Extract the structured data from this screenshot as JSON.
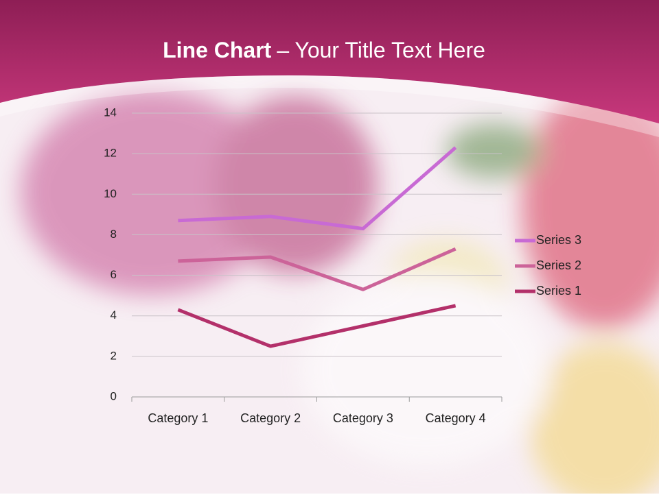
{
  "chart_data": {
    "type": "line",
    "stacked": true,
    "title": {
      "bold": "Line Chart",
      "rest": "– Your Title Text Here"
    },
    "categories": [
      "Category 1",
      "Category 2",
      "Category 3",
      "Category 4"
    ],
    "series": [
      {
        "name": "Series 1",
        "color": "#b3306a",
        "values": [
          4.3,
          2.5,
          3.5,
          4.5
        ]
      },
      {
        "name": "Series 2",
        "color": "#cc6399",
        "values": [
          2.4,
          4.4,
          1.8,
          2.8
        ]
      },
      {
        "name": "Series 3",
        "color": "#c86ad4",
        "values": [
          2,
          2,
          3,
          5
        ]
      }
    ],
    "ylim": [
      0,
      14
    ],
    "yticks": [
      0,
      2,
      4,
      6,
      8,
      10,
      12,
      14
    ],
    "grid": true,
    "legend": "right"
  }
}
